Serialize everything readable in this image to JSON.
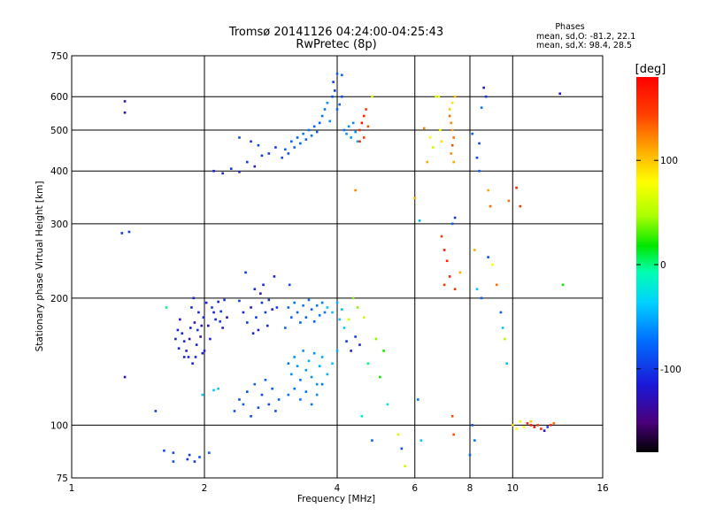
{
  "chart_data": {
    "type": "scatter",
    "title": "Tromsø 20141126 04:24:00-04:25:43",
    "subtitle": "RwPretec (8p)",
    "info": {
      "heading": "Phases",
      "line1": "mean, sd,O: -81.2, 22.1",
      "line2": "mean, sd,X:  98.4, 28.5"
    },
    "xlabel": "Frequency [MHz]",
    "ylabel": "Stationary phase Virtual Height [km]",
    "x_scale": "log",
    "y_scale": "log",
    "xlim": [
      1,
      16
    ],
    "ylim": [
      75,
      750
    ],
    "x_ticks": [
      {
        "value": 1,
        "label": "1"
      },
      {
        "value": 2,
        "label": "2"
      },
      {
        "value": 4,
        "label": "4"
      },
      {
        "value": 6,
        "label": "6"
      },
      {
        "value": 8,
        "label": "8"
      },
      {
        "value": 10,
        "label": "10"
      },
      {
        "value": 16,
        "label": "16"
      }
    ],
    "y_ticks": [
      {
        "value": 75,
        "label": "75"
      },
      {
        "value": 100,
        "label": "100"
      },
      {
        "value": 200,
        "label": "200"
      },
      {
        "value": 300,
        "label": "300"
      },
      {
        "value": 400,
        "label": "400"
      },
      {
        "value": 500,
        "label": "500"
      },
      {
        "value": 600,
        "label": "600"
      },
      {
        "value": 750,
        "label": "750"
      }
    ],
    "grid": true,
    "colorbar": {
      "label": "[deg]",
      "range": [
        -180,
        180
      ],
      "ticks": [
        {
          "value": 100,
          "label": "100"
        },
        {
          "value": 0,
          "label": "0"
        },
        {
          "value": -100,
          "label": "-100"
        }
      ]
    },
    "points": [
      [
        1.32,
        585,
        -130
      ],
      [
        1.32,
        550,
        -130
      ],
      [
        1.3,
        285,
        -100
      ],
      [
        1.35,
        287,
        -100
      ],
      [
        1.32,
        130,
        -130
      ],
      [
        1.55,
        108,
        -100
      ],
      [
        1.62,
        87,
        -90
      ],
      [
        1.7,
        82,
        -90
      ],
      [
        1.7,
        86,
        -90
      ],
      [
        1.83,
        83,
        -100
      ],
      [
        1.85,
        85,
        -100
      ],
      [
        1.9,
        82,
        -100
      ],
      [
        1.95,
        84,
        -90
      ],
      [
        2.05,
        86,
        -80
      ],
      [
        1.64,
        190,
        0
      ],
      [
        1.98,
        118,
        -40
      ],
      [
        2.1,
        121,
        -40
      ],
      [
        2.15,
        122,
        -40
      ],
      [
        1.72,
        160,
        -110
      ],
      [
        1.75,
        152,
        -110
      ],
      [
        1.78,
        165,
        -110
      ],
      [
        1.8,
        158,
        -110
      ],
      [
        1.82,
        150,
        -110
      ],
      [
        1.84,
        145,
        -110
      ],
      [
        1.86,
        170,
        -110
      ],
      [
        1.88,
        140,
        -110
      ],
      [
        1.9,
        175,
        -130
      ],
      [
        1.92,
        155,
        -110
      ],
      [
        1.94,
        185,
        -110
      ],
      [
        1.96,
        162,
        -130
      ],
      [
        1.98,
        148,
        -110
      ],
      [
        1.99,
        180,
        -110
      ],
      [
        2.02,
        195,
        -110
      ],
      [
        2.04,
        172,
        -130
      ],
      [
        2.06,
        160,
        -110
      ],
      [
        2.08,
        190,
        -100
      ],
      [
        2.12,
        178,
        -110
      ],
      [
        2.15,
        196,
        -110
      ],
      [
        2.18,
        186,
        -100
      ],
      [
        2.2,
        170,
        -110
      ],
      [
        2.22,
        198,
        -100
      ],
      [
        2.25,
        180,
        -130
      ],
      [
        1.76,
        178,
        -120
      ],
      [
        1.8,
        145,
        -110
      ],
      [
        1.85,
        160,
        -130
      ],
      [
        1.89,
        200,
        -110
      ],
      [
        1.93,
        168,
        -100
      ],
      [
        2.0,
        150,
        -110
      ],
      [
        2.1,
        185,
        -110
      ],
      [
        2.17,
        176,
        -100
      ],
      [
        1.74,
        168,
        -110
      ],
      [
        1.87,
        190,
        -110
      ],
      [
        1.91,
        145,
        -110
      ],
      [
        1.97,
        172,
        -120
      ],
      [
        2.4,
        197,
        -100
      ],
      [
        2.45,
        185,
        -110
      ],
      [
        2.5,
        175,
        -100
      ],
      [
        2.55,
        190,
        -120
      ],
      [
        2.6,
        210,
        -110
      ],
      [
        2.62,
        180,
        -100
      ],
      [
        2.65,
        168,
        -110
      ],
      [
        2.7,
        195,
        -100
      ],
      [
        2.72,
        215,
        -110
      ],
      [
        2.75,
        185,
        -100
      ],
      [
        2.78,
        172,
        -110
      ],
      [
        2.8,
        198,
        -100
      ],
      [
        2.85,
        188,
        -110
      ],
      [
        2.88,
        225,
        -110
      ],
      [
        2.92,
        190,
        -100
      ],
      [
        2.48,
        230,
        -100
      ],
      [
        2.58,
        165,
        -110
      ],
      [
        2.68,
        205,
        -120
      ],
      [
        2.34,
        108,
        -90
      ],
      [
        2.4,
        115,
        -90
      ],
      [
        2.45,
        112,
        -80
      ],
      [
        2.5,
        120,
        -90
      ],
      [
        2.55,
        105,
        -90
      ],
      [
        2.6,
        125,
        -80
      ],
      [
        2.65,
        110,
        -90
      ],
      [
        2.7,
        118,
        -90
      ],
      [
        2.75,
        128,
        -80
      ],
      [
        2.8,
        112,
        -90
      ],
      [
        2.85,
        122,
        -80
      ],
      [
        2.9,
        108,
        -90
      ],
      [
        2.95,
        115,
        -80
      ],
      [
        3.1,
        190,
        -80
      ],
      [
        3.15,
        180,
        -80
      ],
      [
        3.2,
        195,
        -70
      ],
      [
        3.25,
        185,
        -80
      ],
      [
        3.3,
        175,
        -80
      ],
      [
        3.35,
        192,
        -70
      ],
      [
        3.4,
        180,
        -80
      ],
      [
        3.45,
        198,
        -70
      ],
      [
        3.5,
        188,
        -80
      ],
      [
        3.55,
        176,
        -80
      ],
      [
        3.6,
        192,
        -70
      ],
      [
        3.65,
        182,
        -70
      ],
      [
        3.7,
        195,
        -70
      ],
      [
        3.75,
        185,
        -70
      ],
      [
        3.05,
        170,
        -80
      ],
      [
        3.12,
        215,
        -90
      ],
      [
        3.1,
        140,
        -70
      ],
      [
        3.15,
        132,
        -60
      ],
      [
        3.2,
        145,
        -60
      ],
      [
        3.25,
        138,
        -60
      ],
      [
        3.3,
        128,
        -70
      ],
      [
        3.35,
        150,
        -60
      ],
      [
        3.4,
        135,
        -60
      ],
      [
        3.45,
        142,
        -50
      ],
      [
        3.5,
        130,
        -60
      ],
      [
        3.55,
        148,
        -60
      ],
      [
        3.6,
        125,
        -60
      ],
      [
        3.65,
        138,
        -50
      ],
      [
        3.7,
        145,
        -50
      ],
      [
        3.8,
        132,
        -50
      ],
      [
        3.9,
        140,
        -40
      ],
      [
        4.0,
        150,
        -50
      ],
      [
        3.1,
        118,
        -70
      ],
      [
        3.2,
        122,
        -70
      ],
      [
        3.3,
        115,
        -70
      ],
      [
        3.4,
        120,
        -70
      ],
      [
        3.5,
        112,
        -70
      ],
      [
        3.6,
        118,
        -60
      ],
      [
        3.7,
        125,
        -70
      ],
      [
        3.8,
        190,
        -40
      ],
      [
        3.9,
        185,
        -40
      ],
      [
        4.0,
        195,
        -50
      ],
      [
        4.05,
        178,
        -40
      ],
      [
        4.1,
        188,
        -40
      ],
      [
        4.15,
        170,
        -40
      ],
      [
        4.2,
        158,
        -100
      ],
      [
        4.3,
        150,
        -110
      ],
      [
        4.4,
        162,
        -100
      ],
      [
        4.5,
        155,
        -110
      ],
      [
        4.35,
        200,
        40
      ],
      [
        4.6,
        180,
        60
      ],
      [
        4.9,
        160,
        40
      ],
      [
        5.1,
        150,
        20
      ],
      [
        4.25,
        178,
        60
      ],
      [
        4.45,
        190,
        40
      ],
      [
        4.7,
        140,
        0
      ],
      [
        5.0,
        130,
        20
      ],
      [
        5.2,
        112,
        -20
      ],
      [
        4.55,
        105,
        -20
      ],
      [
        4.8,
        92,
        -80
      ],
      [
        5.5,
        95,
        60
      ],
      [
        5.6,
        88,
        -90
      ],
      [
        5.7,
        80,
        60
      ],
      [
        6.1,
        115,
        -70
      ],
      [
        6.2,
        92,
        -40
      ],
      [
        2.1,
        400,
        -110
      ],
      [
        2.2,
        395,
        -110
      ],
      [
        2.3,
        405,
        -100
      ],
      [
        2.4,
        398,
        -110
      ],
      [
        2.5,
        420,
        -100
      ],
      [
        2.6,
        410,
        -110
      ],
      [
        2.7,
        435,
        -100
      ],
      [
        2.8,
        440,
        -100
      ],
      [
        2.9,
        455,
        -100
      ],
      [
        2.4,
        480,
        -90
      ],
      [
        2.55,
        470,
        -100
      ],
      [
        2.65,
        460,
        -90
      ],
      [
        3.0,
        430,
        -90
      ],
      [
        3.05,
        450,
        -80
      ],
      [
        3.1,
        440,
        -90
      ],
      [
        3.15,
        470,
        -80
      ],
      [
        3.2,
        455,
        -80
      ],
      [
        3.25,
        480,
        -80
      ],
      [
        3.3,
        465,
        -80
      ],
      [
        3.35,
        490,
        -70
      ],
      [
        3.4,
        475,
        -80
      ],
      [
        3.45,
        500,
        -70
      ],
      [
        3.5,
        485,
        -70
      ],
      [
        3.55,
        510,
        -80
      ],
      [
        3.6,
        495,
        -80
      ],
      [
        3.65,
        520,
        -80
      ],
      [
        3.7,
        540,
        -70
      ],
      [
        3.75,
        560,
        -70
      ],
      [
        3.8,
        580,
        -60
      ],
      [
        3.85,
        525,
        -60
      ],
      [
        3.9,
        600,
        -90
      ],
      [
        3.95,
        620,
        -100
      ],
      [
        4.0,
        560,
        -80
      ],
      [
        4.05,
        575,
        -80
      ],
      [
        4.1,
        600,
        -90
      ],
      [
        3.92,
        650,
        -100
      ],
      [
        4.0,
        680,
        -80
      ],
      [
        4.1,
        675,
        -80
      ],
      [
        4.15,
        500,
        -70
      ],
      [
        4.2,
        490,
        -60
      ],
      [
        4.25,
        510,
        -60
      ],
      [
        4.3,
        480,
        -60
      ],
      [
        4.35,
        520,
        -60
      ],
      [
        4.4,
        495,
        -60
      ],
      [
        4.45,
        470,
        -50
      ],
      [
        4.5,
        500,
        160
      ],
      [
        4.55,
        520,
        170
      ],
      [
        4.6,
        540,
        160
      ],
      [
        4.65,
        560,
        150
      ],
      [
        4.6,
        480,
        150
      ],
      [
        4.5,
        470,
        160
      ],
      [
        4.7,
        510,
        140
      ],
      [
        4.8,
        600,
        60
      ],
      [
        4.4,
        360,
        120
      ],
      [
        6.0,
        345,
        110
      ],
      [
        6.15,
        305,
        -50
      ],
      [
        6.3,
        505,
        120
      ],
      [
        6.4,
        420,
        110
      ],
      [
        6.5,
        480,
        80
      ],
      [
        6.6,
        455,
        60
      ],
      [
        6.7,
        600,
        60
      ],
      [
        6.8,
        600,
        80
      ],
      [
        6.85,
        500,
        70
      ],
      [
        6.9,
        470,
        90
      ],
      [
        7.2,
        540,
        130
      ],
      [
        7.25,
        520,
        120
      ],
      [
        7.3,
        500,
        110
      ],
      [
        7.35,
        480,
        130
      ],
      [
        7.3,
        460,
        140
      ],
      [
        7.25,
        440,
        120
      ],
      [
        7.35,
        420,
        110
      ],
      [
        7.2,
        560,
        100
      ],
      [
        7.3,
        580,
        90
      ],
      [
        7.4,
        600,
        100
      ],
      [
        6.9,
        280,
        150
      ],
      [
        7.0,
        260,
        170
      ],
      [
        7.1,
        245,
        160
      ],
      [
        7.3,
        300,
        -80
      ],
      [
        7.4,
        310,
        -100
      ],
      [
        7.0,
        215,
        150
      ],
      [
        7.2,
        225,
        160
      ],
      [
        7.4,
        210,
        150
      ],
      [
        7.6,
        230,
        110
      ],
      [
        7.3,
        105,
        140
      ],
      [
        7.35,
        95,
        140
      ],
      [
        8.0,
        85,
        -80
      ],
      [
        8.1,
        100,
        -90
      ],
      [
        8.2,
        92,
        -70
      ],
      [
        8.1,
        490,
        -80
      ],
      [
        8.3,
        430,
        -90
      ],
      [
        8.4,
        400,
        -80
      ],
      [
        8.6,
        630,
        -120
      ],
      [
        8.7,
        600,
        -100
      ],
      [
        8.5,
        565,
        -70
      ],
      [
        8.4,
        465,
        -90
      ],
      [
        8.8,
        360,
        110
      ],
      [
        8.9,
        330,
        130
      ],
      [
        8.2,
        260,
        110
      ],
      [
        8.8,
        250,
        -90
      ],
      [
        9.0,
        240,
        80
      ],
      [
        9.2,
        215,
        130
      ],
      [
        9.4,
        185,
        -80
      ],
      [
        9.5,
        170,
        -40
      ],
      [
        9.6,
        160,
        50
      ],
      [
        9.7,
        140,
        -40
      ],
      [
        8.3,
        210,
        -40
      ],
      [
        8.5,
        200,
        -80
      ],
      [
        10.0,
        100,
        90
      ],
      [
        10.2,
        98,
        80
      ],
      [
        10.4,
        102,
        70
      ],
      [
        10.6,
        99,
        80
      ],
      [
        10.8,
        101,
        160
      ],
      [
        11.0,
        100,
        170
      ],
      [
        11.2,
        99,
        180
      ],
      [
        11.4,
        100,
        150
      ],
      [
        11.6,
        98,
        160
      ],
      [
        11.8,
        97,
        -120
      ],
      [
        12.0,
        99,
        -100
      ],
      [
        12.2,
        100,
        160
      ],
      [
        12.4,
        101,
        130
      ],
      [
        11.0,
        102,
        100
      ],
      [
        12.8,
        610,
        -130
      ],
      [
        13.0,
        215,
        20
      ],
      [
        9.8,
        340,
        130
      ],
      [
        10.2,
        365,
        160
      ],
      [
        10.4,
        330,
        150
      ]
    ]
  }
}
